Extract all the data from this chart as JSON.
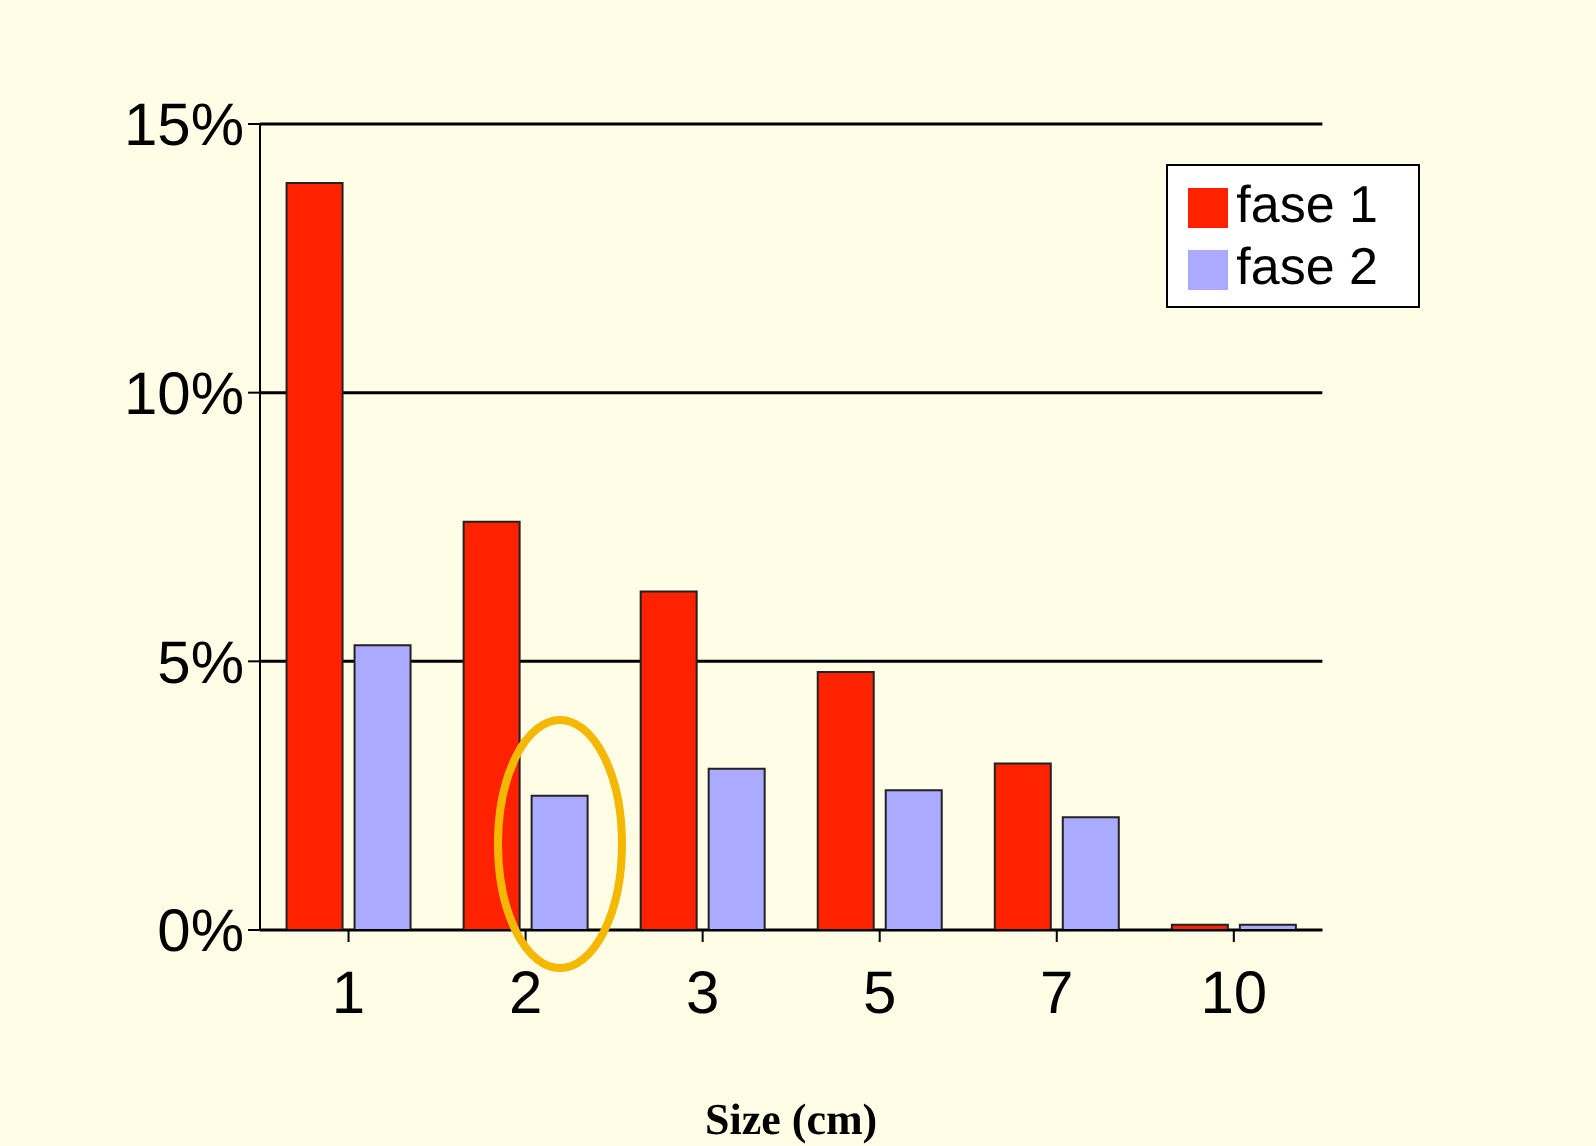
{
  "chart_data": {
    "type": "bar",
    "xlabel": "Size (cm)",
    "categories": [
      "1",
      "2",
      "3",
      "5",
      "7",
      "10"
    ],
    "series": [
      {
        "name": "fase 1",
        "color": "#ff2200",
        "values": [
          13.9,
          7.6,
          6.3,
          4.8,
          3.1,
          0.1
        ]
      },
      {
        "name": "fase 2",
        "color": "#aaaaff",
        "values": [
          5.3,
          2.5,
          3.0,
          2.6,
          2.1,
          0.1
        ]
      }
    ],
    "ylim": [
      0,
      15
    ],
    "yticks": [
      {
        "value": 0,
        "label": "0%"
      },
      {
        "value": 5,
        "label": "5%"
      },
      {
        "value": 10,
        "label": "10%"
      },
      {
        "value": 15,
        "label": "15%"
      }
    ],
    "grid": "y",
    "legend": "top right"
  }
}
